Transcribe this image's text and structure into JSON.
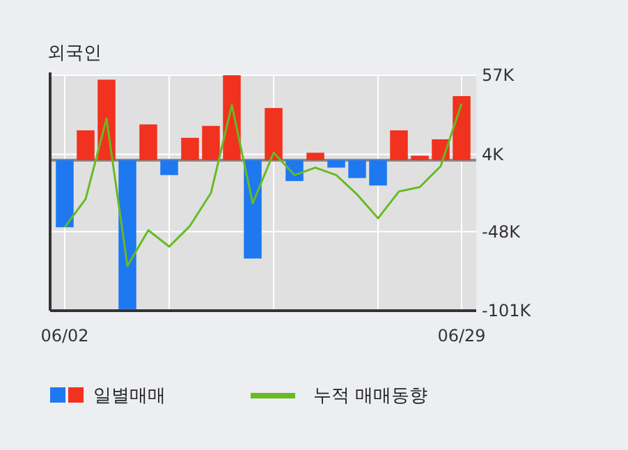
{
  "chart_data": {
    "type": "bar",
    "title": "외국인",
    "categories": [
      "06/02",
      null,
      null,
      null,
      null,
      null,
      null,
      null,
      null,
      null,
      null,
      null,
      null,
      null,
      null,
      null,
      null,
      null,
      null,
      "06/29"
    ],
    "series": [
      {
        "name": "일별매매",
        "colors": [
          "#1e78f0",
          "#f0321e",
          "#f0321e",
          "#1e78f0",
          "#f0321e",
          "#1e78f0",
          "#f0321e",
          "#f0321e",
          "#f0321e",
          "#1e78f0",
          "#f0321e",
          "#1e78f0",
          "#f0321e",
          "#1e78f0",
          "#1e78f0",
          "#1e78f0",
          "#f0321e",
          "#f0321e",
          "#f0321e",
          "#f0321e"
        ],
        "values": [
          -45,
          20,
          54,
          -100,
          24,
          -10,
          15,
          23,
          57,
          -66,
          35,
          -14,
          5,
          -5,
          -12,
          -17,
          20,
          3,
          14,
          43
        ]
      },
      {
        "name": "누적 매매동향",
        "type": "line",
        "color": "#66bb22",
        "values": [
          -45,
          -26,
          28,
          -71,
          -47,
          -58,
          -44,
          -22,
          37,
          -29,
          5,
          -10,
          -5,
          -10,
          -23,
          -39,
          -21,
          -18,
          -4,
          38
        ]
      }
    ],
    "ylim": [
      -101,
      57
    ],
    "yticks": [
      {
        "value": 57,
        "label": "57K"
      },
      {
        "value": 4,
        "label": "4K"
      },
      {
        "value": -48,
        "label": "-48K"
      },
      {
        "value": -101,
        "label": "-101K"
      }
    ],
    "grid": true,
    "legend": "bottom"
  }
}
